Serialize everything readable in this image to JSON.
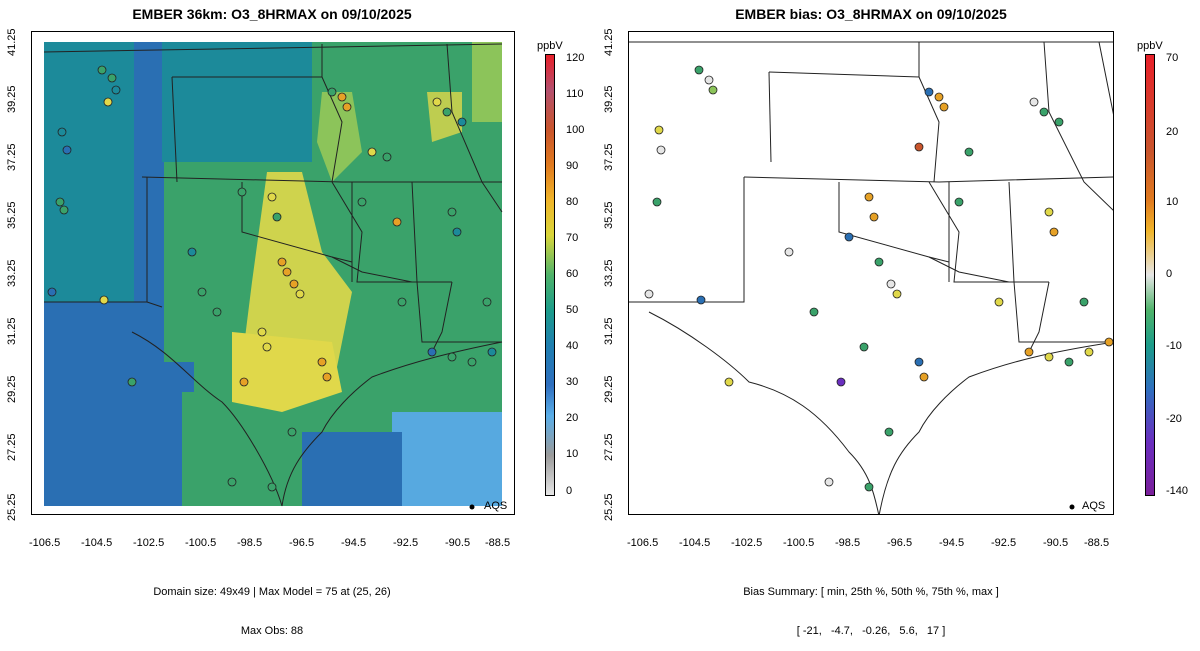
{
  "left_panel": {
    "title": "EMBER 36km: O3_8HRMAX on 09/10/2025",
    "x_ticks": [
      "-106.5",
      "-104.5",
      "-102.5",
      "-100.5",
      "-98.5",
      "-96.5",
      "-94.5",
      "-92.5",
      "-90.5",
      "-88.5"
    ],
    "y_ticks": [
      "25.25",
      "27.25",
      "29.25",
      "31.25",
      "33.25",
      "35.25",
      "37.25",
      "39.25",
      "41.25"
    ],
    "legend": {
      "units": "ppbV",
      "labels": [
        "0",
        "10",
        "20",
        "30",
        "40",
        "50",
        "60",
        "70",
        "80",
        "90",
        "100",
        "110",
        "120"
      ],
      "colors": [
        "#e6e6e6",
        "#9b9b9b",
        "#5aaee8",
        "#2f6fbf",
        "#1f7fb0",
        "#1c9c8a",
        "#4fb36a",
        "#d9d63a",
        "#f0b52a",
        "#e07a1f",
        "#c9552c",
        "#b4506e",
        "#e8202a"
      ]
    },
    "aqs_label": "AQS",
    "caption_line1": "Domain size: 49x49 | Max Model = 75 at (25, 26)",
    "caption_line2": "Max Obs: 88"
  },
  "right_panel": {
    "title": "EMBER bias: O3_8HRMAX on 09/10/2025",
    "x_ticks": [
      "-106.5",
      "-104.5",
      "-102.5",
      "-100.5",
      "-98.5",
      "-96.5",
      "-94.5",
      "-92.5",
      "-90.5",
      "-88.5"
    ],
    "y_ticks": [
      "25.25",
      "27.25",
      "29.25",
      "31.25",
      "33.25",
      "35.25",
      "37.25",
      "39.25",
      "41.25"
    ],
    "legend": {
      "units": "ppbV",
      "labels": [
        "70",
        "20",
        "10",
        "0",
        "-10",
        "-20",
        "-140"
      ],
      "colors": [
        "#e8202a",
        "#c9552c",
        "#e07a1f",
        "#f0b52a",
        "#e6e6e6",
        "#4fb36a",
        "#1c9c8a",
        "#2f6fbf",
        "#6a2fbf",
        "#7a1f9a"
      ]
    },
    "aqs_label": "AQS",
    "caption_line1": "Bias Summary: [ min, 25th %, 50th %, 75th %, max ]",
    "caption_line2": "[ -21,   -4.7,   -0.26,   5.6,   17 ]"
  },
  "map_colors": {
    "green": "#3aa26a",
    "teal": "#1c8a9a",
    "blue": "#2a6fb3",
    "lightblue": "#57a9e0",
    "yellow": "#e0d84a",
    "lightgreen": "#8cc45a",
    "orange": "#e6a126",
    "white": "#ffffff"
  }
}
